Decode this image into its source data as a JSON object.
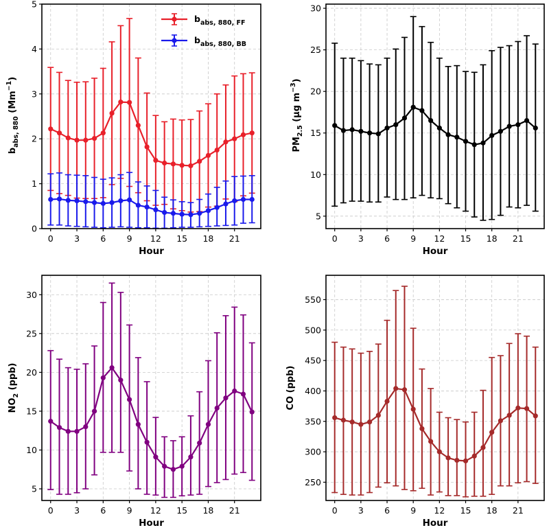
{
  "chart_data": [
    {
      "type": "line",
      "id": "babs",
      "xlabel": "Hour",
      "ylabel": {
        "main": "b",
        "sub": "abs, 880",
        "unit_open": " (Mm",
        "unit_sup": "−1",
        "unit_close": ")"
      },
      "ylim": [
        0,
        5
      ],
      "yticks": [
        0,
        1,
        2,
        3,
        4,
        5
      ],
      "xlim": [
        -1,
        24
      ],
      "xticks": [
        0,
        3,
        6,
        9,
        12,
        15,
        18,
        21
      ],
      "grid": true,
      "legend": {
        "placement": "top-right"
      },
      "x": [
        0,
        1,
        2,
        3,
        4,
        5,
        6,
        7,
        8,
        9,
        10,
        11,
        12,
        13,
        14,
        15,
        16,
        17,
        18,
        19,
        20,
        21,
        22,
        23
      ],
      "series": [
        {
          "name": "b_abs, 880, FF",
          "label_main": "b",
          "label_sub": "abs, 880, FF",
          "color": "#e8202a",
          "values": [
            2.22,
            2.13,
            2.02,
            1.97,
            1.97,
            2.01,
            2.13,
            2.57,
            2.82,
            2.81,
            2.3,
            1.82,
            1.52,
            1.46,
            1.44,
            1.41,
            1.4,
            1.5,
            1.63,
            1.75,
            1.93,
            2.0,
            2.09,
            2.13
          ],
          "upper": [
            3.59,
            3.48,
            3.3,
            3.26,
            3.27,
            3.35,
            3.57,
            4.16,
            4.52,
            4.68,
            3.8,
            3.02,
            2.52,
            2.38,
            2.44,
            2.42,
            2.43,
            2.62,
            2.78,
            3.0,
            3.2,
            3.4,
            3.45,
            3.47
          ],
          "lower": [
            0.85,
            0.78,
            0.74,
            0.68,
            0.67,
            0.67,
            0.69,
            0.98,
            1.12,
            0.94,
            0.8,
            0.62,
            0.52,
            0.54,
            0.44,
            0.4,
            0.37,
            0.38,
            0.48,
            0.5,
            0.66,
            0.6,
            0.73,
            0.79
          ]
        },
        {
          "name": "b_abs, 880, BB",
          "label_main": "b",
          "label_sub": "abs, 880, BB",
          "color": "#1a1aeb",
          "values": [
            0.65,
            0.66,
            0.63,
            0.62,
            0.6,
            0.58,
            0.56,
            0.58,
            0.62,
            0.64,
            0.52,
            0.48,
            0.42,
            0.36,
            0.34,
            0.32,
            0.31,
            0.34,
            0.4,
            0.47,
            0.55,
            0.62,
            0.65,
            0.65
          ],
          "upper": [
            1.22,
            1.24,
            1.2,
            1.19,
            1.18,
            1.14,
            1.1,
            1.13,
            1.2,
            1.25,
            1.04,
            0.95,
            0.85,
            0.7,
            0.64,
            0.6,
            0.58,
            0.65,
            0.77,
            0.92,
            1.06,
            1.16,
            1.17,
            1.18
          ],
          "lower": [
            0.08,
            0.08,
            0.06,
            0.05,
            0.04,
            0.03,
            0.02,
            0.03,
            0.04,
            0.03,
            0.02,
            0.02,
            0.01,
            0.01,
            0.02,
            0.03,
            0.03,
            0.04,
            0.05,
            0.06,
            0.07,
            0.08,
            0.12,
            0.13
          ]
        }
      ]
    },
    {
      "type": "line",
      "id": "pm",
      "xlabel": "Hour",
      "ylabel": {
        "main": "PM",
        "sub": "2.5",
        "unit_open": " (μg m",
        "unit_sup": "−3",
        "unit_close": ")"
      },
      "ylim": [
        3.5,
        30.5
      ],
      "yticks": [
        5,
        10,
        15,
        20,
        25,
        30
      ],
      "xlim": [
        -1,
        24
      ],
      "xticks": [
        0,
        3,
        6,
        9,
        12,
        15,
        18,
        21
      ],
      "grid": true,
      "x": [
        0,
        1,
        2,
        3,
        4,
        5,
        6,
        7,
        8,
        9,
        10,
        11,
        12,
        13,
        14,
        15,
        16,
        17,
        18,
        19,
        20,
        21,
        22,
        23
      ],
      "series": [
        {
          "name": "PM2.5",
          "color": "#000000",
          "values": [
            15.9,
            15.3,
            15.4,
            15.2,
            15.0,
            14.9,
            15.6,
            16.0,
            16.8,
            18.1,
            17.7,
            16.5,
            15.6,
            14.8,
            14.5,
            14.0,
            13.6,
            13.8,
            14.7,
            15.2,
            15.8,
            16.0,
            16.5,
            15.6
          ],
          "upper": [
            25.8,
            24.0,
            24.0,
            23.7,
            23.3,
            23.2,
            24.0,
            25.1,
            26.5,
            29.0,
            27.8,
            25.9,
            24.0,
            23.0,
            23.1,
            22.4,
            22.3,
            23.2,
            24.9,
            25.3,
            25.5,
            26.0,
            26.7,
            25.7
          ],
          "lower": [
            6.2,
            6.6,
            6.8,
            6.8,
            6.7,
            6.7,
            7.3,
            7.0,
            7.0,
            7.2,
            7.5,
            7.2,
            7.1,
            6.5,
            6.0,
            5.6,
            4.9,
            4.5,
            4.6,
            5.1,
            6.1,
            6.0,
            6.3,
            5.6
          ]
        }
      ]
    },
    {
      "type": "line",
      "id": "no2",
      "xlabel": "Hour",
      "ylabel": {
        "main": "NO",
        "sub": "2",
        "unit_open": " (ppb)",
        "unit_sup": "",
        "unit_close": ""
      },
      "ylim": [
        3.5,
        32.5
      ],
      "yticks": [
        5,
        10,
        15,
        20,
        25,
        30
      ],
      "xlim": [
        -1,
        24
      ],
      "xticks": [
        0,
        3,
        6,
        9,
        12,
        15,
        18,
        21
      ],
      "grid": true,
      "x": [
        0,
        1,
        2,
        3,
        4,
        5,
        6,
        7,
        8,
        9,
        10,
        11,
        12,
        13,
        14,
        15,
        16,
        17,
        18,
        19,
        20,
        21,
        22,
        23
      ],
      "series": [
        {
          "name": "NO2",
          "color": "#800080",
          "values": [
            13.7,
            12.9,
            12.4,
            12.4,
            13.0,
            15.0,
            19.3,
            20.6,
            19.0,
            16.5,
            13.3,
            11.0,
            9.1,
            7.9,
            7.5,
            7.9,
            9.1,
            10.9,
            13.3,
            15.4,
            16.7,
            17.6,
            17.2,
            14.9
          ],
          "upper": [
            22.8,
            21.7,
            20.6,
            20.4,
            21.1,
            23.4,
            29.0,
            31.5,
            30.3,
            26.1,
            21.9,
            18.8,
            14.2,
            11.7,
            11.2,
            11.7,
            14.4,
            17.5,
            21.5,
            25.1,
            27.3,
            28.4,
            27.4,
            23.8
          ],
          "lower": [
            4.9,
            4.3,
            4.3,
            4.5,
            5.0,
            6.8,
            9.7,
            9.7,
            9.7,
            7.3,
            5.0,
            4.3,
            4.2,
            3.9,
            3.9,
            4.1,
            4.2,
            4.3,
            5.3,
            5.8,
            6.2,
            6.9,
            7.1,
            6.1
          ]
        }
      ]
    },
    {
      "type": "line",
      "id": "co",
      "xlabel": "Hour",
      "ylabel": {
        "main": "CO (ppb)",
        "sub": "",
        "unit_open": "",
        "unit_sup": "",
        "unit_close": ""
      },
      "ylim": [
        220,
        590
      ],
      "yticks": [
        250,
        300,
        350,
        400,
        450,
        500,
        550
      ],
      "xlim": [
        -1,
        24
      ],
      "xticks": [
        0,
        3,
        6,
        9,
        12,
        15,
        18,
        21
      ],
      "grid": true,
      "x": [
        0,
        1,
        2,
        3,
        4,
        5,
        6,
        7,
        8,
        9,
        10,
        11,
        12,
        13,
        14,
        15,
        16,
        17,
        18,
        19,
        20,
        21,
        22,
        23
      ],
      "series": [
        {
          "name": "CO",
          "color": "#a52a2a",
          "values": [
            356,
            352,
            349,
            345,
            349,
            360,
            383,
            404,
            402,
            370,
            338,
            317,
            300,
            290,
            286,
            285,
            293,
            307,
            332,
            351,
            360,
            372,
            371,
            359
          ],
          "upper": [
            480,
            472,
            469,
            462,
            465,
            477,
            516,
            565,
            572,
            503,
            436,
            404,
            365,
            356,
            353,
            349,
            365,
            401,
            455,
            458,
            478,
            494,
            490,
            472
          ],
          "lower": [
            233,
            230,
            229,
            229,
            233,
            242,
            249,
            244,
            238,
            236,
            240,
            229,
            234,
            228,
            228,
            226,
            227,
            227,
            230,
            244,
            244,
            249,
            251,
            248
          ]
        }
      ]
    }
  ]
}
